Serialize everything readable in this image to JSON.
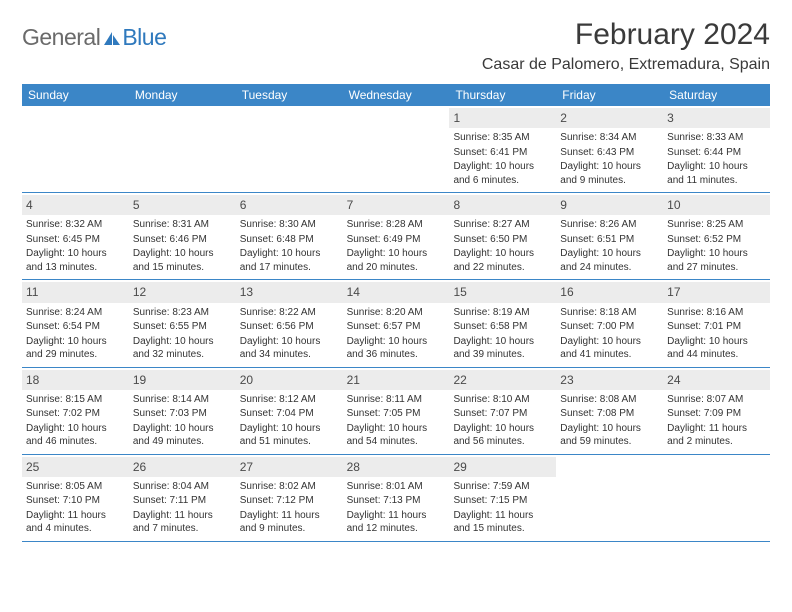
{
  "logo": {
    "part1": "General",
    "part2": "Blue"
  },
  "title": "February 2024",
  "location": "Casar de Palomero, Extremadura, Spain",
  "colors": {
    "header_bg": "#3b86c7",
    "header_text": "#ffffff",
    "daynum_bg": "#ececec",
    "body_text": "#333333",
    "logo_gray": "#6a6a6a",
    "logo_blue": "#2f79bd",
    "row_border": "#3b86c7"
  },
  "weekdays": [
    "Sunday",
    "Monday",
    "Tuesday",
    "Wednesday",
    "Thursday",
    "Friday",
    "Saturday"
  ],
  "label_sunrise": "Sunrise: ",
  "label_sunset": "Sunset: ",
  "label_daylight_prefix": "Daylight: ",
  "weeks": [
    [
      {
        "blank": true
      },
      {
        "blank": true
      },
      {
        "blank": true
      },
      {
        "blank": true
      },
      {
        "day": "1",
        "sunrise": "8:35 AM",
        "sunset": "6:41 PM",
        "daylight": "10 hours and 6 minutes."
      },
      {
        "day": "2",
        "sunrise": "8:34 AM",
        "sunset": "6:43 PM",
        "daylight": "10 hours and 9 minutes."
      },
      {
        "day": "3",
        "sunrise": "8:33 AM",
        "sunset": "6:44 PM",
        "daylight": "10 hours and 11 minutes."
      }
    ],
    [
      {
        "day": "4",
        "sunrise": "8:32 AM",
        "sunset": "6:45 PM",
        "daylight": "10 hours and 13 minutes."
      },
      {
        "day": "5",
        "sunrise": "8:31 AM",
        "sunset": "6:46 PM",
        "daylight": "10 hours and 15 minutes."
      },
      {
        "day": "6",
        "sunrise": "8:30 AM",
        "sunset": "6:48 PM",
        "daylight": "10 hours and 17 minutes."
      },
      {
        "day": "7",
        "sunrise": "8:28 AM",
        "sunset": "6:49 PM",
        "daylight": "10 hours and 20 minutes."
      },
      {
        "day": "8",
        "sunrise": "8:27 AM",
        "sunset": "6:50 PM",
        "daylight": "10 hours and 22 minutes."
      },
      {
        "day": "9",
        "sunrise": "8:26 AM",
        "sunset": "6:51 PM",
        "daylight": "10 hours and 24 minutes."
      },
      {
        "day": "10",
        "sunrise": "8:25 AM",
        "sunset": "6:52 PM",
        "daylight": "10 hours and 27 minutes."
      }
    ],
    [
      {
        "day": "11",
        "sunrise": "8:24 AM",
        "sunset": "6:54 PM",
        "daylight": "10 hours and 29 minutes."
      },
      {
        "day": "12",
        "sunrise": "8:23 AM",
        "sunset": "6:55 PM",
        "daylight": "10 hours and 32 minutes."
      },
      {
        "day": "13",
        "sunrise": "8:22 AM",
        "sunset": "6:56 PM",
        "daylight": "10 hours and 34 minutes."
      },
      {
        "day": "14",
        "sunrise": "8:20 AM",
        "sunset": "6:57 PM",
        "daylight": "10 hours and 36 minutes."
      },
      {
        "day": "15",
        "sunrise": "8:19 AM",
        "sunset": "6:58 PM",
        "daylight": "10 hours and 39 minutes."
      },
      {
        "day": "16",
        "sunrise": "8:18 AM",
        "sunset": "7:00 PM",
        "daylight": "10 hours and 41 minutes."
      },
      {
        "day": "17",
        "sunrise": "8:16 AM",
        "sunset": "7:01 PM",
        "daylight": "10 hours and 44 minutes."
      }
    ],
    [
      {
        "day": "18",
        "sunrise": "8:15 AM",
        "sunset": "7:02 PM",
        "daylight": "10 hours and 46 minutes."
      },
      {
        "day": "19",
        "sunrise": "8:14 AM",
        "sunset": "7:03 PM",
        "daylight": "10 hours and 49 minutes."
      },
      {
        "day": "20",
        "sunrise": "8:12 AM",
        "sunset": "7:04 PM",
        "daylight": "10 hours and 51 minutes."
      },
      {
        "day": "21",
        "sunrise": "8:11 AM",
        "sunset": "7:05 PM",
        "daylight": "10 hours and 54 minutes."
      },
      {
        "day": "22",
        "sunrise": "8:10 AM",
        "sunset": "7:07 PM",
        "daylight": "10 hours and 56 minutes."
      },
      {
        "day": "23",
        "sunrise": "8:08 AM",
        "sunset": "7:08 PM",
        "daylight": "10 hours and 59 minutes."
      },
      {
        "day": "24",
        "sunrise": "8:07 AM",
        "sunset": "7:09 PM",
        "daylight": "11 hours and 2 minutes."
      }
    ],
    [
      {
        "day": "25",
        "sunrise": "8:05 AM",
        "sunset": "7:10 PM",
        "daylight": "11 hours and 4 minutes."
      },
      {
        "day": "26",
        "sunrise": "8:04 AM",
        "sunset": "7:11 PM",
        "daylight": "11 hours and 7 minutes."
      },
      {
        "day": "27",
        "sunrise": "8:02 AM",
        "sunset": "7:12 PM",
        "daylight": "11 hours and 9 minutes."
      },
      {
        "day": "28",
        "sunrise": "8:01 AM",
        "sunset": "7:13 PM",
        "daylight": "11 hours and 12 minutes."
      },
      {
        "day": "29",
        "sunrise": "7:59 AM",
        "sunset": "7:15 PM",
        "daylight": "11 hours and 15 minutes."
      },
      {
        "blank": true
      },
      {
        "blank": true
      }
    ]
  ]
}
